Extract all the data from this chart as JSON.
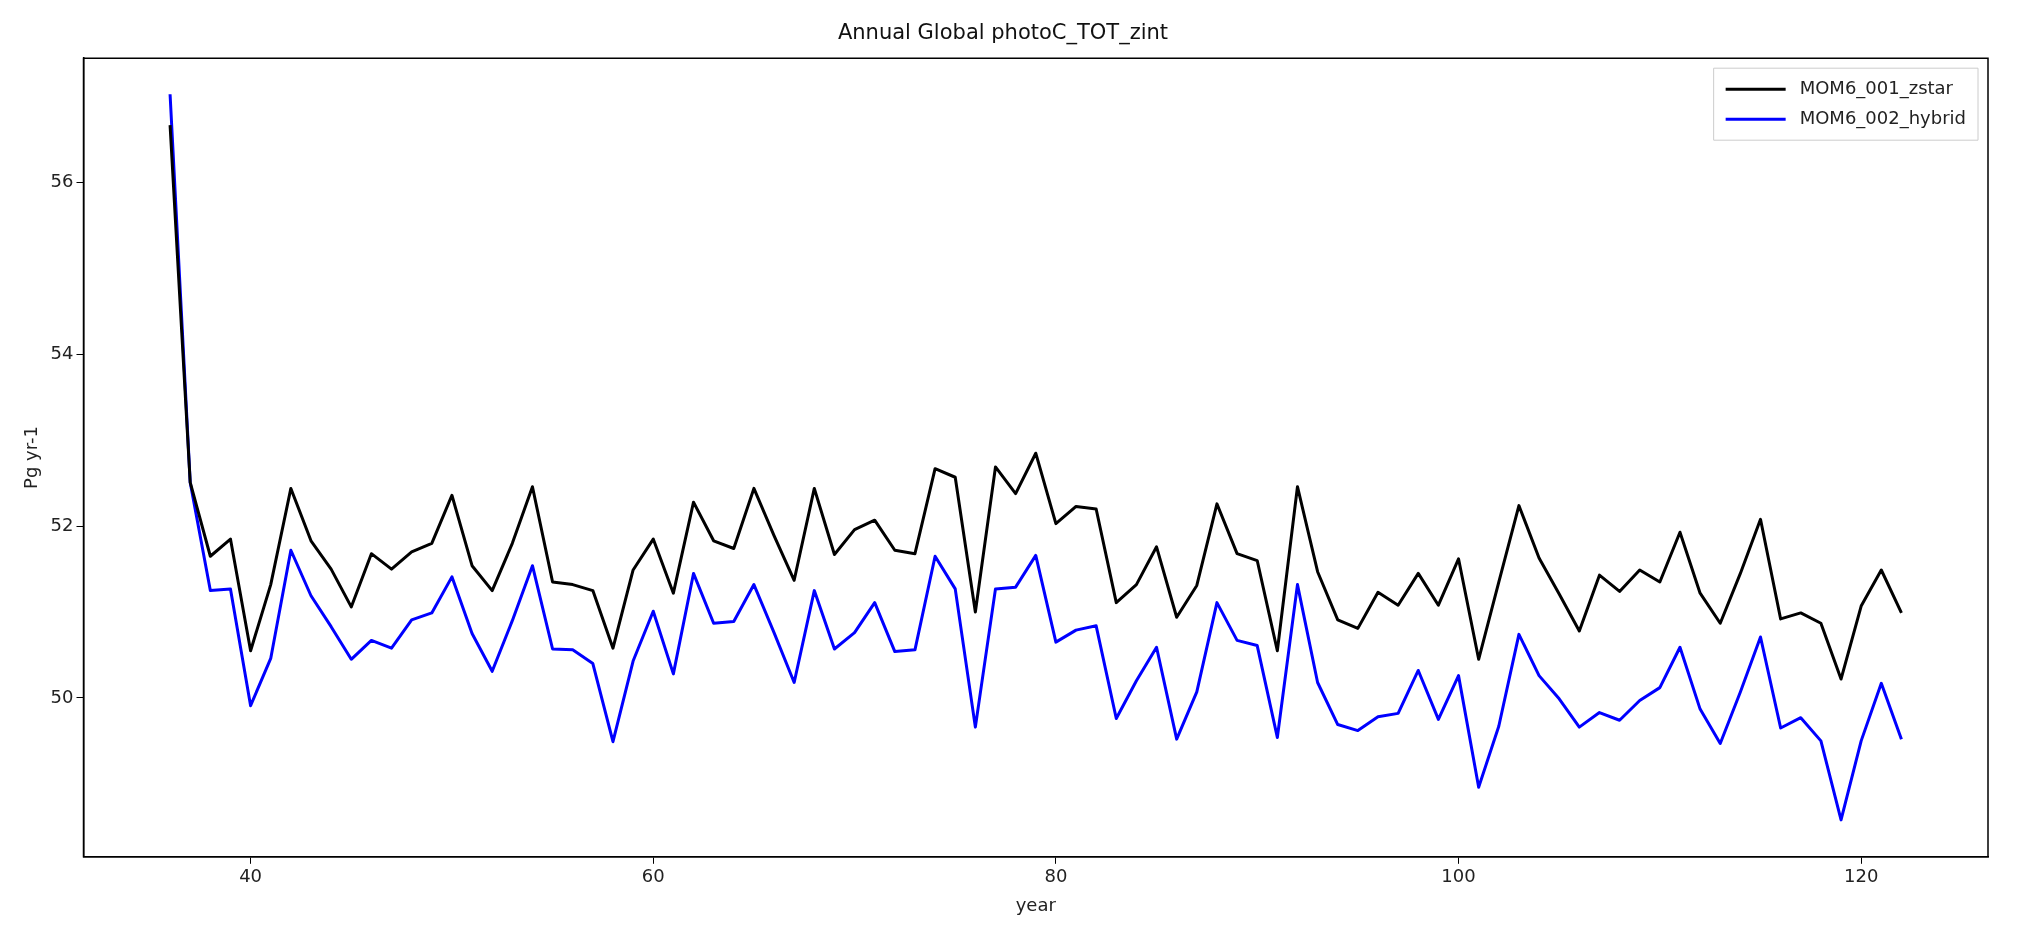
{
  "chart_data": {
    "type": "line",
    "title": "Annual Global photoC_TOT_zint",
    "xlabel": "year",
    "ylabel": "Pg yr-1",
    "x": [
      36,
      37,
      38,
      39,
      40,
      41,
      42,
      43,
      44,
      45,
      46,
      47,
      48,
      49,
      50,
      51,
      52,
      53,
      54,
      55,
      56,
      57,
      58,
      59,
      60,
      61,
      62,
      63,
      64,
      65,
      66,
      67,
      68,
      69,
      70,
      71,
      72,
      73,
      74,
      75,
      76,
      77,
      78,
      79,
      80,
      81,
      82,
      83,
      84,
      85,
      86,
      87,
      88,
      89,
      90,
      91,
      92,
      93,
      94,
      95,
      96,
      97,
      98,
      99,
      100,
      101,
      102,
      103,
      104,
      105,
      106,
      107,
      108,
      109,
      110,
      111,
      112,
      113,
      114,
      115,
      116,
      117,
      118,
      119,
      120,
      121,
      122
    ],
    "series": [
      {
        "name": "MOM6_001_zstar",
        "color": "#000000",
        "values": [
          56.67,
          52.51,
          51.65,
          51.85,
          50.55,
          51.32,
          52.44,
          51.83,
          51.5,
          51.06,
          51.68,
          51.5,
          51.7,
          51.8,
          52.36,
          51.54,
          51.25,
          51.8,
          52.46,
          51.35,
          51.32,
          51.25,
          50.58,
          51.49,
          51.85,
          51.22,
          52.28,
          51.83,
          51.74,
          52.44,
          51.89,
          51.37,
          52.44,
          51.67,
          51.96,
          52.07,
          51.72,
          51.68,
          52.67,
          52.57,
          51.0,
          52.69,
          52.38,
          52.85,
          52.03,
          52.23,
          52.2,
          51.11,
          51.32,
          51.76,
          50.94,
          51.31,
          52.26,
          51.68,
          51.6,
          50.55,
          52.46,
          51.47,
          50.91,
          50.81,
          51.23,
          51.08,
          51.45,
          51.08,
          51.62,
          50.45,
          51.35,
          52.24,
          51.63,
          51.21,
          50.78,
          51.43,
          51.24,
          51.49,
          51.35,
          51.93,
          51.22,
          50.87,
          51.45,
          52.08,
          50.92,
          50.99,
          50.87,
          50.22,
          51.07,
          51.49,
          50.99
        ]
      },
      {
        "name": "MOM6_002_hybrid",
        "color": "#0000ff",
        "values": [
          57.03,
          52.51,
          51.25,
          51.27,
          49.91,
          50.46,
          51.72,
          51.19,
          50.83,
          50.45,
          50.67,
          50.58,
          50.91,
          50.99,
          51.41,
          50.75,
          50.31,
          50.9,
          51.54,
          50.57,
          50.56,
          50.4,
          49.49,
          50.43,
          51.01,
          50.28,
          51.45,
          50.87,
          50.89,
          51.32,
          50.76,
          50.18,
          51.25,
          50.57,
          50.76,
          51.11,
          50.54,
          50.56,
          51.65,
          51.27,
          49.66,
          51.27,
          51.29,
          51.66,
          50.65,
          50.79,
          50.84,
          49.76,
          50.2,
          50.59,
          49.52,
          50.07,
          51.11,
          50.67,
          50.61,
          49.54,
          51.32,
          50.18,
          49.69,
          49.62,
          49.78,
          49.82,
          50.32,
          49.75,
          50.26,
          48.96,
          49.67,
          50.74,
          50.26,
          49.99,
          49.66,
          49.83,
          49.74,
          49.97,
          50.12,
          50.59,
          49.87,
          49.47,
          50.07,
          50.71,
          49.65,
          49.77,
          49.5,
          48.58,
          49.5,
          50.17,
          49.52
        ]
      }
    ],
    "xlim": [
      31.7,
      126.3
    ],
    "xticks": [
      40,
      60,
      80,
      100,
      120
    ],
    "ylim": [
      48.15,
      57.45
    ],
    "yticks": [
      50,
      52,
      54,
      56
    ],
    "legend": "top right",
    "grid": false,
    "marker": "none",
    "line_style": "solid"
  }
}
